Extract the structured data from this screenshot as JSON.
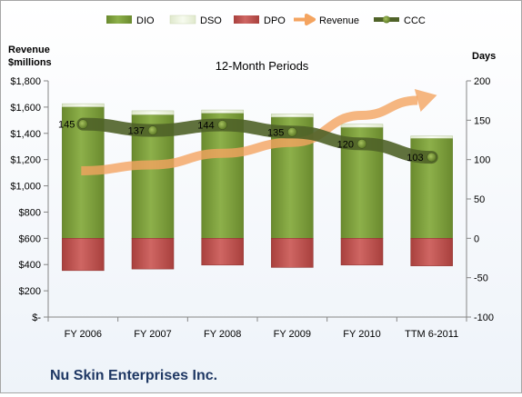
{
  "chart_data": {
    "type": "bar",
    "title": "12-Month Periods",
    "company": "Nu Skin Enterprises Inc.",
    "left_axis_label": [
      "Revenue",
      "$millions"
    ],
    "right_axis_label": "Days",
    "categories": [
      "FY 2006",
      "FY 2007",
      "FY 2008",
      "FY 2009",
      "FY 2010",
      "TTM 6-2011"
    ],
    "left_axis": {
      "min": 0,
      "max": 1800,
      "step": 200,
      "tick_labels": [
        "$-",
        "$200",
        "$400",
        "$600",
        "$800",
        "$1,000",
        "$1,200",
        "$1,400",
        "$1,600",
        "$1,800"
      ]
    },
    "right_axis": {
      "min": -100,
      "max": 200,
      "step": 50,
      "tick_labels": [
        "-100",
        "-50",
        "0",
        "50",
        "100",
        "150",
        "200"
      ]
    },
    "grid": false,
    "legend_position": "top",
    "series": [
      {
        "name": "DIO",
        "axis": "right",
        "kind": "stacked-bar",
        "color": "#76923c",
        "values": [
          167,
          157,
          159,
          154,
          141,
          127
        ]
      },
      {
        "name": "DSO",
        "axis": "right",
        "kind": "stacked-bar",
        "color": "#ebf1de",
        "values": [
          4,
          5,
          4,
          4,
          4,
          3
        ]
      },
      {
        "name": "DPO",
        "axis": "right",
        "kind": "negative-bar",
        "color": "#c0504d",
        "values": [
          -41,
          -39,
          -34,
          -37,
          -34,
          -35
        ]
      },
      {
        "name": "Revenue",
        "axis": "left",
        "kind": "arrow-line",
        "color": "#f4a460",
        "values": [
          1115,
          1160,
          1248,
          1331,
          1537,
          1680
        ]
      },
      {
        "name": "CCC",
        "axis": "right",
        "kind": "line-markers",
        "color": "#4f6228",
        "values": [
          145,
          137,
          144,
          135,
          120,
          103
        ],
        "labels": [
          "145",
          "137",
          "144",
          "135",
          "120",
          "103"
        ]
      }
    ]
  }
}
